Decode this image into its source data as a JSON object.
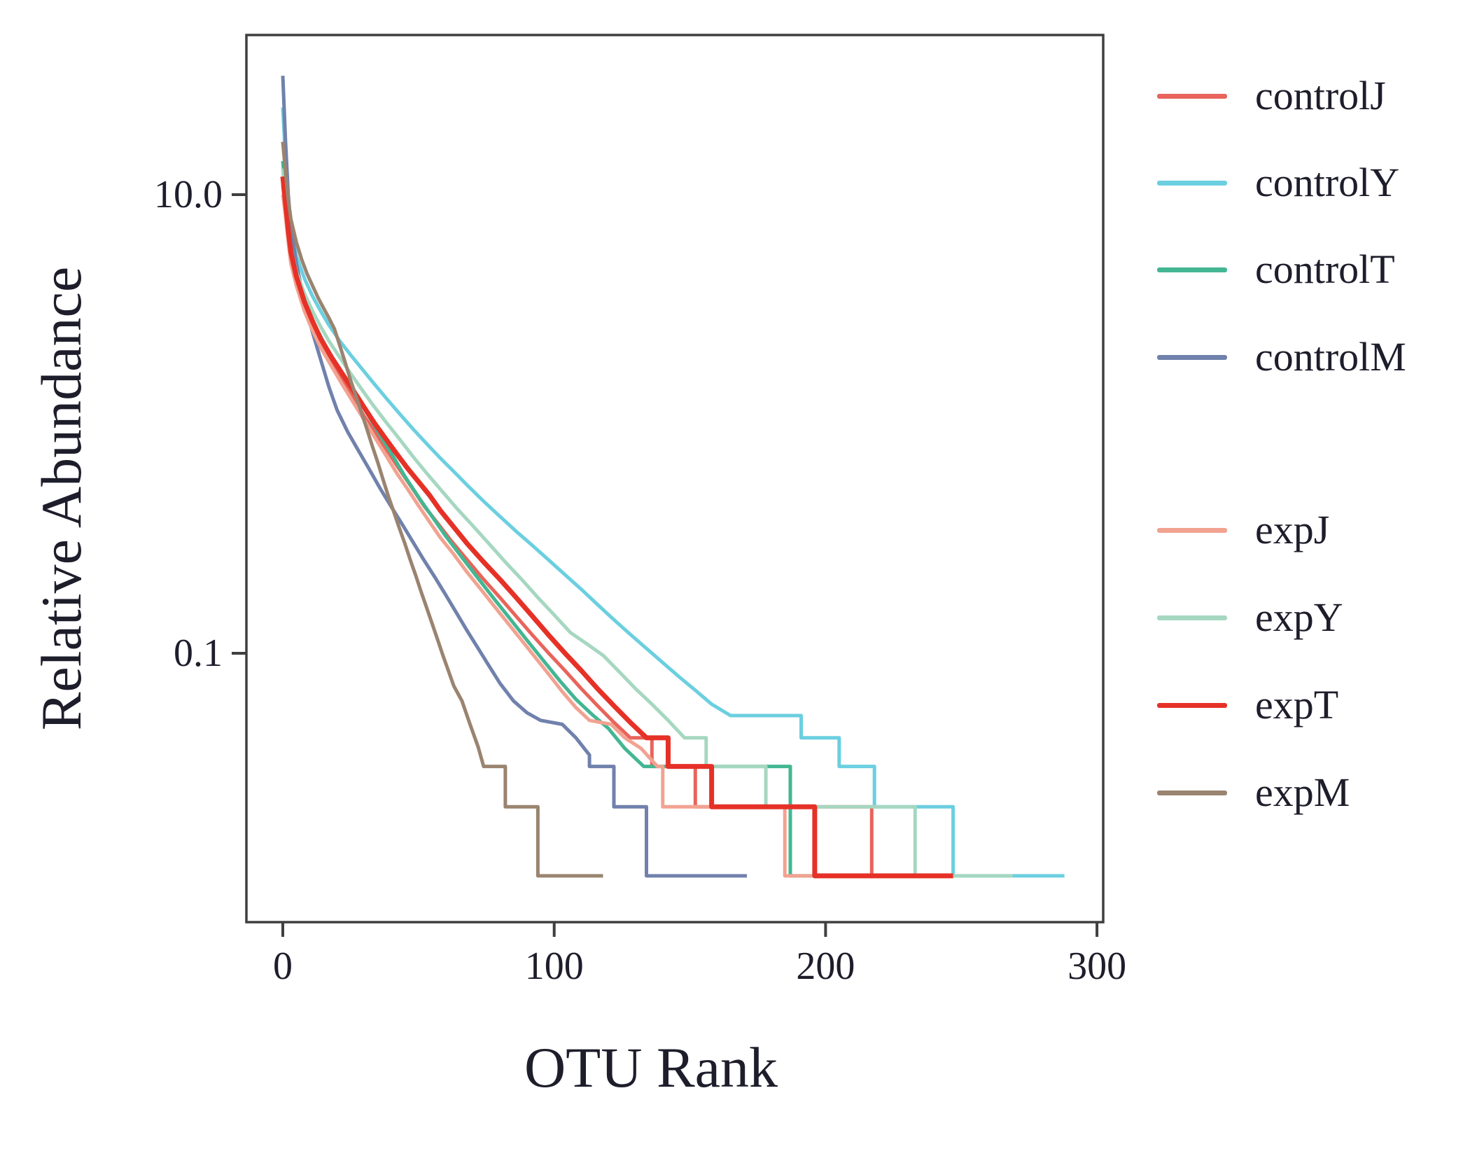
{
  "chart_data": {
    "type": "line",
    "step_style": true,
    "title": "",
    "xlabel": "OTU Rank",
    "ylabel": "Relative Abundance",
    "x_axis": {
      "min": -13,
      "max": 302,
      "ticks": [
        0,
        100,
        200,
        300
      ],
      "tick_labels": [
        "0",
        "100",
        "200",
        "300"
      ]
    },
    "y_axis": {
      "scale": "log",
      "min": 0.0067,
      "max": 49,
      "ticks": [
        10,
        0.1
      ],
      "tick_labels": [
        "10.0",
        "0.1"
      ]
    },
    "legend_position": "right",
    "axis_color": "#3f3f3f",
    "series": [
      {
        "name": "controlJ",
        "color": "#E8645C",
        "width": 5,
        "points": [
          [
            0,
            11
          ],
          [
            1,
            8.5
          ],
          [
            2,
            6.5
          ],
          [
            3,
            5.4
          ],
          [
            5,
            4.3
          ],
          [
            8,
            3.3
          ],
          [
            11,
            2.7
          ],
          [
            14,
            2.25
          ],
          [
            18,
            1.85
          ],
          [
            22,
            1.55
          ],
          [
            26,
            1.3
          ],
          [
            30,
            1.08
          ],
          [
            34,
            0.92
          ],
          [
            38,
            0.78
          ],
          [
            42,
            0.66
          ],
          [
            47,
            0.54
          ],
          [
            52,
            0.44
          ],
          [
            57,
            0.37
          ],
          [
            62,
            0.31
          ],
          [
            68,
            0.255
          ],
          [
            74,
            0.21
          ],
          [
            80,
            0.175
          ],
          [
            86,
            0.145
          ],
          [
            92,
            0.12
          ],
          [
            98,
            0.1
          ],
          [
            104,
            0.084
          ],
          [
            110,
            0.07
          ],
          [
            116,
            0.059
          ],
          [
            122,
            0.05
          ],
          [
            128,
            0.0428
          ],
          [
            136,
            0.0428
          ],
          [
            136,
            0.0321
          ],
          [
            152,
            0.0321
          ],
          [
            152,
            0.0214
          ],
          [
            217,
            0.0214
          ],
          [
            217,
            0.0107
          ],
          [
            238,
            0.0107
          ]
        ]
      },
      {
        "name": "controlY",
        "color": "#6BCFE0",
        "width": 5,
        "points": [
          [
            0,
            24
          ],
          [
            1,
            14
          ],
          [
            2,
            9.5
          ],
          [
            3,
            7.2
          ],
          [
            5,
            5.4
          ],
          [
            8,
            4.3
          ],
          [
            11,
            3.6
          ],
          [
            14,
            3.1
          ],
          [
            17,
            2.7
          ],
          [
            21,
            2.3
          ],
          [
            25,
            2.0
          ],
          [
            29,
            1.75
          ],
          [
            33,
            1.53
          ],
          [
            38,
            1.3
          ],
          [
            43,
            1.11
          ],
          [
            48,
            0.95
          ],
          [
            53,
            0.82
          ],
          [
            58,
            0.71
          ],
          [
            63,
            0.62
          ],
          [
            68,
            0.54
          ],
          [
            74,
            0.46
          ],
          [
            80,
            0.395
          ],
          [
            86,
            0.34
          ],
          [
            92,
            0.295
          ],
          [
            98,
            0.255
          ],
          [
            104,
            0.22
          ],
          [
            110,
            0.19
          ],
          [
            116,
            0.163
          ],
          [
            122,
            0.14
          ],
          [
            128,
            0.121
          ],
          [
            134,
            0.105
          ],
          [
            140,
            0.091
          ],
          [
            146,
            0.079
          ],
          [
            152,
            0.069
          ],
          [
            158,
            0.06
          ],
          [
            165,
            0.0535
          ],
          [
            191,
            0.0535
          ],
          [
            191,
            0.0428
          ],
          [
            205,
            0.0428
          ],
          [
            205,
            0.0321
          ],
          [
            218,
            0.0321
          ],
          [
            218,
            0.0214
          ],
          [
            247,
            0.0214
          ],
          [
            247,
            0.0107
          ],
          [
            288,
            0.0107
          ]
        ]
      },
      {
        "name": "controlT",
        "color": "#43B692",
        "width": 5,
        "points": [
          [
            0,
            14
          ],
          [
            1,
            10
          ],
          [
            2,
            7.4
          ],
          [
            3,
            5.8
          ],
          [
            5,
            4.5
          ],
          [
            8,
            3.4
          ],
          [
            11,
            2.8
          ],
          [
            14,
            2.4
          ],
          [
            17,
            2.05
          ],
          [
            21,
            1.72
          ],
          [
            25,
            1.45
          ],
          [
            29,
            1.22
          ],
          [
            33,
            1.02
          ],
          [
            37,
            0.85
          ],
          [
            41,
            0.71
          ],
          [
            45,
            0.59
          ],
          [
            50,
            0.48
          ],
          [
            55,
            0.395
          ],
          [
            60,
            0.325
          ],
          [
            66,
            0.262
          ],
          [
            72,
            0.212
          ],
          [
            78,
            0.172
          ],
          [
            84,
            0.14
          ],
          [
            90,
            0.114
          ],
          [
            96,
            0.093
          ],
          [
            102,
            0.076
          ],
          [
            108,
            0.063
          ],
          [
            114,
            0.054
          ],
          [
            120,
            0.047
          ],
          [
            126,
            0.0385
          ],
          [
            133,
            0.0321
          ],
          [
            187,
            0.0321
          ],
          [
            187,
            0.0107
          ],
          [
            208,
            0.0107
          ]
        ]
      },
      {
        "name": "controlM",
        "color": "#7081AC",
        "width": 5,
        "points": [
          [
            0,
            33
          ],
          [
            1,
            17
          ],
          [
            2,
            10
          ],
          [
            3,
            7.2
          ],
          [
            5,
            5.0
          ],
          [
            8,
            3.4
          ],
          [
            11,
            2.5
          ],
          [
            14,
            1.9
          ],
          [
            17,
            1.45
          ],
          [
            20,
            1.15
          ],
          [
            24,
            0.92
          ],
          [
            28,
            0.76
          ],
          [
            32,
            0.63
          ],
          [
            36,
            0.52
          ],
          [
            40,
            0.435
          ],
          [
            44,
            0.365
          ],
          [
            48,
            0.305
          ],
          [
            52,
            0.255
          ],
          [
            56,
            0.215
          ],
          [
            60,
            0.18
          ],
          [
            64,
            0.15
          ],
          [
            68,
            0.125
          ],
          [
            72,
            0.105
          ],
          [
            76,
            0.088
          ],
          [
            80,
            0.074
          ],
          [
            85,
            0.062
          ],
          [
            90,
            0.055
          ],
          [
            95,
            0.051
          ],
          [
            103,
            0.049
          ],
          [
            108,
            0.0428
          ],
          [
            113,
            0.036
          ],
          [
            113,
            0.0321
          ],
          [
            122,
            0.0321
          ],
          [
            122,
            0.0214
          ],
          [
            134,
            0.0214
          ],
          [
            134,
            0.0107
          ],
          [
            171,
            0.0107
          ]
        ]
      },
      {
        "name": "expJ",
        "color": "#F2A291",
        "width": 5,
        "points": [
          [
            0,
            10
          ],
          [
            1,
            8
          ],
          [
            2,
            6.2
          ],
          [
            3,
            5.0
          ],
          [
            5,
            4.0
          ],
          [
            8,
            3.1
          ],
          [
            11,
            2.55
          ],
          [
            14,
            2.15
          ],
          [
            18,
            1.78
          ],
          [
            22,
            1.48
          ],
          [
            26,
            1.24
          ],
          [
            30,
            1.04
          ],
          [
            34,
            0.87
          ],
          [
            38,
            0.73
          ],
          [
            42,
            0.61
          ],
          [
            46,
            0.52
          ],
          [
            50,
            0.44
          ],
          [
            54,
            0.375
          ],
          [
            58,
            0.32
          ],
          [
            63,
            0.27
          ],
          [
            68,
            0.225
          ],
          [
            73,
            0.19
          ],
          [
            78,
            0.16
          ],
          [
            83,
            0.135
          ],
          [
            88,
            0.114
          ],
          [
            93,
            0.096
          ],
          [
            98,
            0.081
          ],
          [
            103,
            0.068
          ],
          [
            108,
            0.058
          ],
          [
            113,
            0.051
          ],
          [
            121,
            0.049
          ],
          [
            126,
            0.0428
          ],
          [
            132,
            0.0385
          ],
          [
            138,
            0.0321
          ],
          [
            140,
            0.0321
          ],
          [
            140,
            0.0214
          ],
          [
            185,
            0.0214
          ],
          [
            185,
            0.0107
          ],
          [
            213,
            0.0107
          ]
        ]
      },
      {
        "name": "expY",
        "color": "#A6D7C1",
        "width": 5,
        "points": [
          [
            0,
            13
          ],
          [
            1,
            9.5
          ],
          [
            2,
            7.2
          ],
          [
            3,
            5.8
          ],
          [
            5,
            4.6
          ],
          [
            8,
            3.7
          ],
          [
            11,
            3.1
          ],
          [
            14,
            2.65
          ],
          [
            17,
            2.3
          ],
          [
            21,
            1.95
          ],
          [
            25,
            1.66
          ],
          [
            29,
            1.42
          ],
          [
            33,
            1.22
          ],
          [
            38,
            1.02
          ],
          [
            43,
            0.86
          ],
          [
            48,
            0.72
          ],
          [
            53,
            0.61
          ],
          [
            58,
            0.52
          ],
          [
            64,
            0.43
          ],
          [
            70,
            0.36
          ],
          [
            76,
            0.3
          ],
          [
            82,
            0.25
          ],
          [
            88,
            0.21
          ],
          [
            94,
            0.175
          ],
          [
            100,
            0.147
          ],
          [
            106,
            0.123
          ],
          [
            112,
            0.11
          ],
          [
            118,
            0.098
          ],
          [
            124,
            0.083
          ],
          [
            130,
            0.07
          ],
          [
            136,
            0.06
          ],
          [
            142,
            0.051
          ],
          [
            148,
            0.0428
          ],
          [
            156,
            0.0428
          ],
          [
            156,
            0.0321
          ],
          [
            178,
            0.0321
          ],
          [
            178,
            0.0214
          ],
          [
            233,
            0.0214
          ],
          [
            233,
            0.0107
          ],
          [
            269,
            0.0107
          ]
        ]
      },
      {
        "name": "expT",
        "color": "#E63127",
        "width": 7,
        "points": [
          [
            0,
            12
          ],
          [
            1,
            9.2
          ],
          [
            2,
            7.0
          ],
          [
            3,
            5.6
          ],
          [
            5,
            4.4
          ],
          [
            8,
            3.4
          ],
          [
            11,
            2.8
          ],
          [
            14,
            2.35
          ],
          [
            18,
            1.95
          ],
          [
            22,
            1.65
          ],
          [
            26,
            1.4
          ],
          [
            30,
            1.18
          ],
          [
            34,
            1.0
          ],
          [
            38,
            0.86
          ],
          [
            42,
            0.74
          ],
          [
            46,
            0.64
          ],
          [
            50,
            0.56
          ],
          [
            54,
            0.49
          ],
          [
            58,
            0.42
          ],
          [
            63,
            0.355
          ],
          [
            68,
            0.3
          ],
          [
            74,
            0.25
          ],
          [
            80,
            0.21
          ],
          [
            86,
            0.175
          ],
          [
            92,
            0.145
          ],
          [
            98,
            0.12
          ],
          [
            104,
            0.1
          ],
          [
            110,
            0.084
          ],
          [
            116,
            0.07
          ],
          [
            122,
            0.059
          ],
          [
            128,
            0.05
          ],
          [
            134,
            0.0428
          ],
          [
            142,
            0.0428
          ],
          [
            142,
            0.0321
          ],
          [
            158,
            0.0321
          ],
          [
            158,
            0.0214
          ],
          [
            196,
            0.0214
          ],
          [
            196,
            0.0107
          ],
          [
            247,
            0.0107
          ]
        ]
      },
      {
        "name": "expM",
        "color": "#9A8470",
        "width": 5,
        "points": [
          [
            0,
            17
          ],
          [
            1,
            12.5
          ],
          [
            2,
            9.5
          ],
          [
            3,
            7.8
          ],
          [
            5,
            6.2
          ],
          [
            7,
            5.2
          ],
          [
            9,
            4.5
          ],
          [
            11,
            4.0
          ],
          [
            13,
            3.55
          ],
          [
            15,
            3.2
          ],
          [
            17,
            2.9
          ],
          [
            19,
            2.6
          ],
          [
            21,
            2.2
          ],
          [
            23,
            1.85
          ],
          [
            25,
            1.55
          ],
          [
            27,
            1.32
          ],
          [
            29,
            1.12
          ],
          [
            31,
            0.95
          ],
          [
            33,
            0.8
          ],
          [
            35,
            0.68
          ],
          [
            37,
            0.57
          ],
          [
            39,
            0.48
          ],
          [
            41,
            0.41
          ],
          [
            43,
            0.35
          ],
          [
            45,
            0.3
          ],
          [
            47,
            0.255
          ],
          [
            49,
            0.218
          ],
          [
            51,
            0.185
          ],
          [
            53,
            0.158
          ],
          [
            55,
            0.135
          ],
          [
            57,
            0.115
          ],
          [
            59,
            0.098
          ],
          [
            61,
            0.084
          ],
          [
            63,
            0.072
          ],
          [
            66,
            0.062
          ],
          [
            69,
            0.049
          ],
          [
            72,
            0.039
          ],
          [
            74,
            0.0321
          ],
          [
            82,
            0.0321
          ],
          [
            82,
            0.0214
          ],
          [
            94,
            0.0214
          ],
          [
            94,
            0.0107
          ],
          [
            118,
            0.0107
          ]
        ]
      }
    ]
  }
}
